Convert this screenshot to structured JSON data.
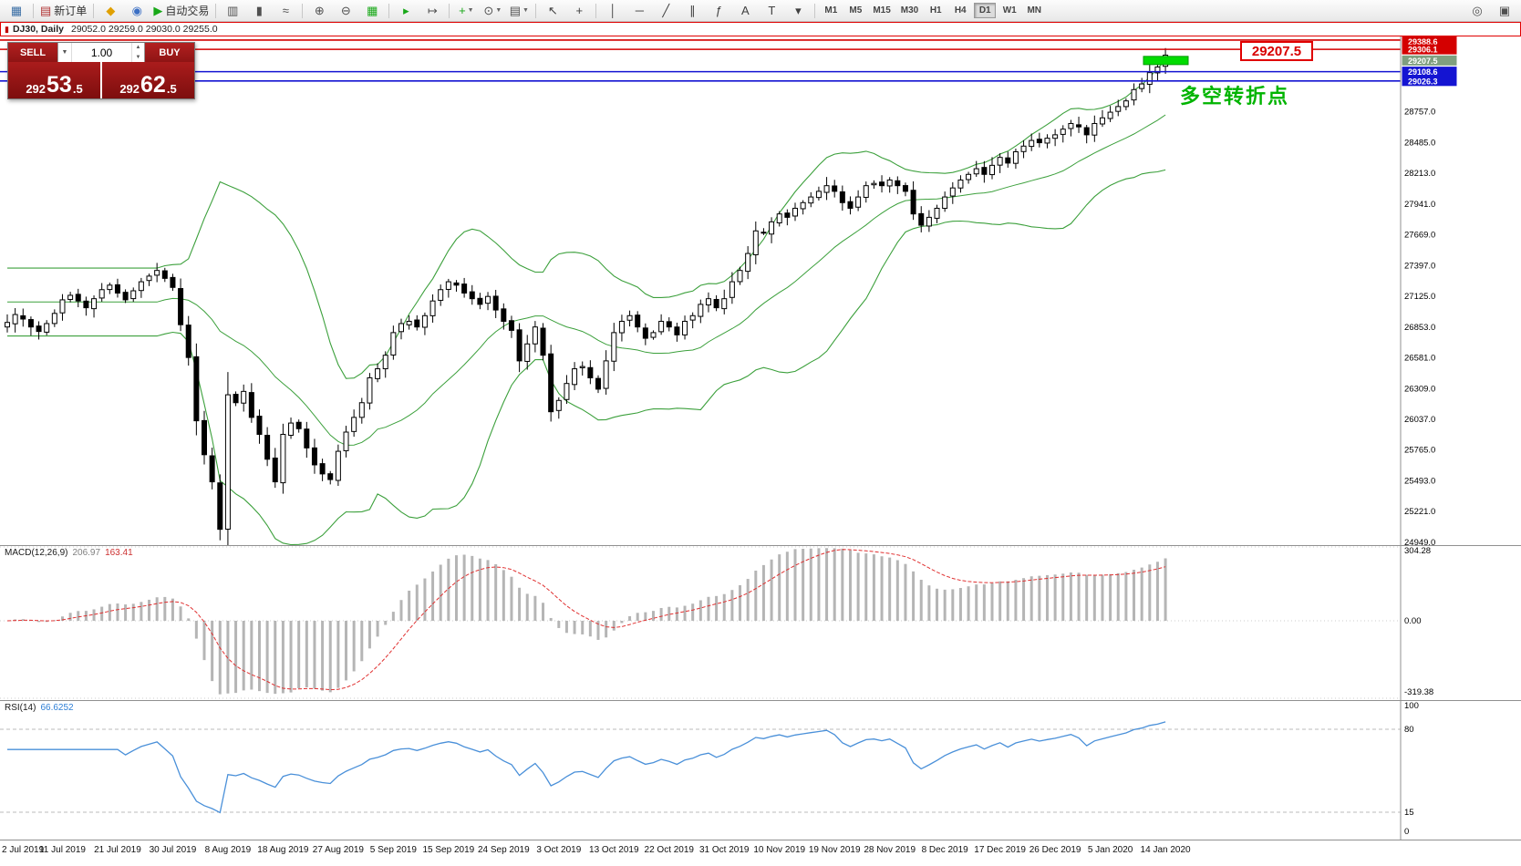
{
  "toolbar": {
    "buttons": [
      {
        "name": "app-icon",
        "glyph": "▦",
        "color": "#3A6EA5",
        "deco": true
      },
      {
        "sep": true
      },
      {
        "name": "new-order-button",
        "glyph": "▤",
        "color": "#B03030",
        "label": "新订单"
      },
      {
        "sep": true
      },
      {
        "name": "metaeditor-button",
        "glyph": "◆",
        "color": "#E0A000"
      },
      {
        "name": "market-watch-button",
        "glyph": "◉",
        "color": "#3B6FC4"
      },
      {
        "name": "autotrading-button",
        "glyph": "▶",
        "color": "#18A818",
        "label": "自动交易"
      },
      {
        "sep": true
      },
      {
        "name": "bar-chart-button",
        "glyph": "▥",
        "color": "#505050"
      },
      {
        "name": "candlestick-chart-button",
        "glyph": "▮",
        "color": "#505050"
      },
      {
        "name": "line-chart-button",
        "glyph": "≈",
        "color": "#505050"
      },
      {
        "sep": true
      },
      {
        "name": "zoom-in-button",
        "glyph": "⊕",
        "color": "#505050"
      },
      {
        "name": "zoom-out-button",
        "glyph": "⊖",
        "color": "#505050"
      },
      {
        "name": "tile-windows-button",
        "glyph": "▦",
        "color": "#18A818"
      },
      {
        "sep": true
      },
      {
        "name": "auto-scroll-button",
        "glyph": "▸",
        "color": "#18A818"
      },
      {
        "name": "chart-shift-button",
        "glyph": "↦",
        "color": "#505050"
      },
      {
        "sep": true
      },
      {
        "name": "indicators-button",
        "glyph": "+",
        "color": "#18A818",
        "caret": true
      },
      {
        "name": "periods-button",
        "glyph": "⊙",
        "color": "#505050",
        "caret": true
      },
      {
        "name": "templates-button",
        "glyph": "▤",
        "color": "#505050",
        "caret": true
      },
      {
        "sep": true
      },
      {
        "name": "cursor-button",
        "glyph": "↖",
        "color": "#404040"
      },
      {
        "name": "crosshair-button",
        "glyph": "+",
        "color": "#404040"
      },
      {
        "sep": true
      },
      {
        "name": "vertical-line-button",
        "glyph": "│",
        "color": "#404040"
      },
      {
        "name": "horizontal-line-button",
        "glyph": "─",
        "color": "#404040"
      },
      {
        "name": "trendline-button",
        "glyph": "╱",
        "color": "#404040"
      },
      {
        "name": "channel-button",
        "glyph": "∥",
        "color": "#404040"
      },
      {
        "name": "fibonacci-button",
        "glyph": "ƒ",
        "color": "#404040"
      },
      {
        "name": "text-button",
        "glyph": "A",
        "color": "#404040"
      },
      {
        "name": "text-label-button",
        "glyph": "T",
        "color": "#404040"
      },
      {
        "name": "arrows-button",
        "glyph": "▾",
        "color": "#404040"
      },
      {
        "sep": true
      }
    ],
    "timeframes": [
      "M1",
      "M5",
      "M15",
      "M30",
      "H1",
      "H4",
      "D1",
      "W1",
      "MN"
    ],
    "active_timeframe": "D1",
    "right_buttons": [
      {
        "name": "search-symbol-button",
        "glyph": "◎",
        "color": "#505050"
      },
      {
        "name": "new-window-button",
        "glyph": "▣",
        "color": "#505050"
      }
    ]
  },
  "chart_header": {
    "title": "DJ30, Daily",
    "ohlc": "29052.0 29259.0 29030.0 29255.0"
  },
  "trade_panel": {
    "sell_label": "SELL",
    "buy_label": "BUY",
    "lot_size": "1.00",
    "sell_price": {
      "prefix": "292",
      "big": "53",
      "suffix": ".5"
    },
    "buy_price": {
      "prefix": "292",
      "big": "62",
      "suffix": ".5"
    }
  },
  "annotations": {
    "price_box_text": "29207.5",
    "note_text": "多空转折点"
  },
  "chart_data": {
    "type": "candlestick",
    "symbol": "DJ30",
    "timeframe": "Daily",
    "y_range": [
      24920,
      29420
    ],
    "y_ticks": [
      28757,
      28485,
      28213,
      27941,
      27669,
      27397,
      27125,
      26853,
      26581,
      26309,
      26037,
      25765,
      25493,
      25221,
      24949
    ],
    "x_labels": [
      {
        "i": 0,
        "t": "2 Jul 2019"
      },
      {
        "i": 7,
        "t": "11 Jul 2019"
      },
      {
        "i": 14,
        "t": "21 Jul 2019"
      },
      {
        "i": 21,
        "t": "30 Jul 2019"
      },
      {
        "i": 28,
        "t": "8 Aug 2019"
      },
      {
        "i": 35,
        "t": "18 Aug 2019"
      },
      {
        "i": 42,
        "t": "27 Aug 2019"
      },
      {
        "i": 49,
        "t": "5 Sep 2019"
      },
      {
        "i": 56,
        "t": "15 Sep 2019"
      },
      {
        "i": 63,
        "t": "24 Sep 2019"
      },
      {
        "i": 70,
        "t": "3 Oct 2019"
      },
      {
        "i": 77,
        "t": "13 Oct 2019"
      },
      {
        "i": 84,
        "t": "22 Oct 2019"
      },
      {
        "i": 91,
        "t": "31 Oct 2019"
      },
      {
        "i": 98,
        "t": "10 Nov 2019"
      },
      {
        "i": 105,
        "t": "19 Nov 2019"
      },
      {
        "i": 112,
        "t": "28 Nov 2019"
      },
      {
        "i": 119,
        "t": "8 Dec 2019"
      },
      {
        "i": 126,
        "t": "17 Dec 2019"
      },
      {
        "i": 133,
        "t": "26 Dec 2019"
      },
      {
        "i": 140,
        "t": "5 Jan 2020"
      },
      {
        "i": 147,
        "t": "14 Jan 2020"
      }
    ],
    "closes": [
      26890,
      26960,
      26920,
      26850,
      26810,
      26880,
      26970,
      27090,
      27130,
      27080,
      27020,
      27100,
      27180,
      27220,
      27150,
      27090,
      27170,
      27250,
      27300,
      27350,
      27280,
      27200,
      26870,
      26580,
      26020,
      25720,
      25480,
      25060,
      26250,
      26180,
      26280,
      26050,
      25900,
      25680,
      25480,
      25900,
      26000,
      25950,
      25780,
      25630,
      25550,
      25500,
      25750,
      25920,
      26050,
      26180,
      26400,
      26480,
      26600,
      26800,
      26880,
      26900,
      26850,
      26950,
      27080,
      27180,
      27250,
      27220,
      27150,
      27100,
      27050,
      27120,
      27000,
      26900,
      26820,
      26550,
      26700,
      26850,
      26600,
      26100,
      26200,
      26350,
      26480,
      26500,
      26400,
      26300,
      26550,
      26800,
      26900,
      26950,
      26850,
      26750,
      26800,
      26900,
      26850,
      26780,
      26900,
      26950,
      27050,
      27100,
      27020,
      27100,
      27250,
      27350,
      27500,
      27700,
      27680,
      27780,
      27850,
      27820,
      27900,
      27950,
      28000,
      28050,
      28100,
      28050,
      27950,
      27900,
      28000,
      28100,
      28120,
      28100,
      28150,
      28100,
      28050,
      27850,
      27750,
      27820,
      27900,
      28000,
      28080,
      28150,
      28200,
      28250,
      28200,
      28280,
      28350,
      28300,
      28400,
      28450,
      28500,
      28480,
      28520,
      28550,
      28600,
      28650,
      28620,
      28550,
      28650,
      28700,
      28750,
      28800,
      28850,
      28950,
      29000,
      29100,
      29150,
      29255
    ],
    "levels": [
      {
        "price": 29388.6,
        "style": "line",
        "color": "#D40000",
        "label_bg": "#D40000"
      },
      {
        "price": 29306.1,
        "style": "line",
        "color": "#D40000",
        "label_bg": "#D40000"
      },
      {
        "price": 29207.5,
        "style": "rect",
        "color": "#00DC00",
        "label_bg": "#7F9F7F",
        "rect_x1": 1254,
        "rect_x2": 1303,
        "rect_h": 9
      },
      {
        "price": 29108.6,
        "style": "line",
        "color": "#1414D2",
        "label_bg": "#1414D2"
      },
      {
        "price": 29026.3,
        "style": "line",
        "color": "#1414D2",
        "label_bg": "#1414D2"
      }
    ],
    "indicators": {
      "bollinger": {
        "period": 20,
        "deviation": 2,
        "color": "#3CA03C"
      },
      "macd": {
        "label": "MACD(12,26,9)",
        "macd_value": "206.97",
        "signal_value": "163.41",
        "y_ticks": [
          "304.28",
          "0.00",
          "-319.38"
        ],
        "y_range": [
          -319.38,
          304.28
        ],
        "histogram_color": "#B5B5B5",
        "signal_color": "#E03030"
      },
      "rsi": {
        "label": "RSI(14)",
        "value": "66.6252",
        "y_ticks": [
          "100",
          "80",
          "15",
          "0"
        ],
        "levels": [
          80,
          15
        ],
        "color": "#4A90D9",
        "y_range": [
          0,
          100
        ]
      }
    }
  }
}
